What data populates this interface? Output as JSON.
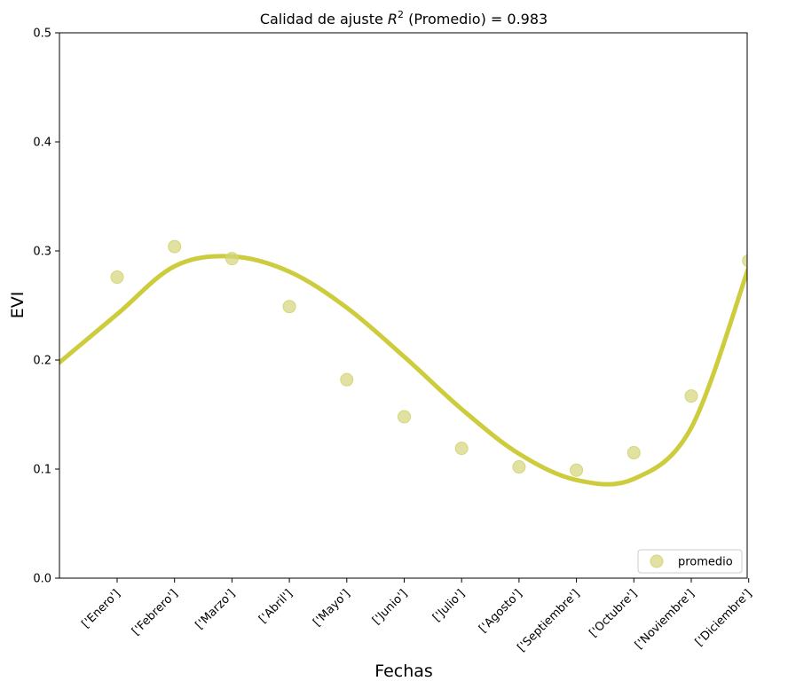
{
  "chart_data": {
    "type": "scatter",
    "title_prefix": "Calidad de ajuste ",
    "title_r": "R",
    "title_sup": "2",
    "title_suffix": " (Promedio) = 0.983",
    "xlabel": "Fechas",
    "ylabel": "EVI",
    "ylim": [
      0.0,
      0.5
    ],
    "yticks": [
      "0.0",
      "0.1",
      "0.2",
      "0.3",
      "0.4",
      "0.5"
    ],
    "categories": [
      "['Enero']",
      "['Febrero']",
      "['Marzo']",
      "['Abril']",
      "['Mayo']",
      "['Junio']",
      "['Julio']",
      "['Agosto']",
      "['Septiembre']",
      "['Octubre']",
      "['Noviembre']",
      "['Diciembre']"
    ],
    "series": [
      {
        "name": "promedio",
        "kind": "points",
        "values": [
          0.276,
          0.304,
          0.293,
          0.249,
          0.182,
          0.148,
          0.119,
          0.102,
          0.099,
          0.115,
          0.167,
          0.291
        ]
      },
      {
        "kind": "fit-line",
        "fit_values": [
          0.242,
          0.286,
          0.295,
          0.281,
          0.248,
          0.203,
          0.155,
          0.114,
          0.09,
          0.091,
          0.138,
          0.285
        ]
      }
    ],
    "legend_position": "lower-right",
    "grid": false,
    "colors": {
      "points": "#d4d67a",
      "line": "#cccc3d"
    }
  }
}
